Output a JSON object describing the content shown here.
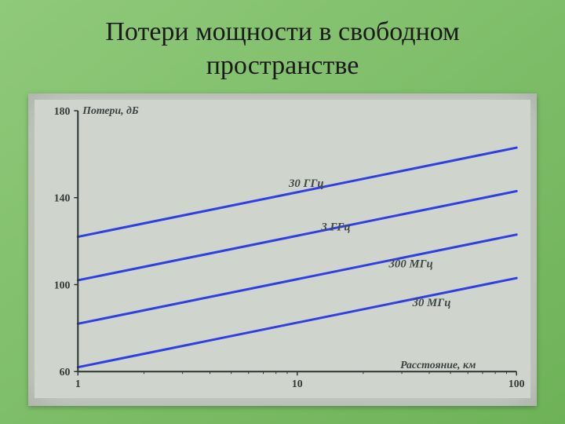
{
  "title_line1": "Потери мощности в свободном",
  "title_line2": "пространстве",
  "chart": {
    "type": "line",
    "background_color": "#cfd4cc",
    "plot_bg": "#cfd4cc",
    "axis_color": "#2b3431",
    "grid_color": "#7d8a82",
    "line_color": "#2f3fe0",
    "line_width": 3,
    "y_label": "Потери, дБ",
    "x_label": "Расстояние, км",
    "y_label_fontsize": 14,
    "x_label_fontsize": 14,
    "tick_fontsize": 14,
    "series_label_fontsize": 15,
    "x_scale": "log",
    "xlim": [
      1,
      100
    ],
    "ylim": [
      60,
      180
    ],
    "x_ticks": [
      {
        "value": 1,
        "label": "1"
      },
      {
        "value": 10,
        "label": "10"
      },
      {
        "value": 100,
        "label": "100"
      }
    ],
    "y_ticks": [
      {
        "value": 60,
        "label": "60"
      },
      {
        "value": 100,
        "label": "100"
      },
      {
        "value": 140,
        "label": "140"
      },
      {
        "value": 180,
        "label": "180"
      }
    ],
    "minor_grid_x": [
      2,
      3,
      4,
      5,
      6,
      7,
      8,
      9,
      20,
      30,
      40,
      50,
      60,
      70,
      80,
      90
    ],
    "series": [
      {
        "name": "30 МГц",
        "label": "30 МГц",
        "y_at_x1": 62,
        "y_at_x100": 103,
        "label_x": 41,
        "label_y": 90
      },
      {
        "name": "300 МГц",
        "label": "300 МГц",
        "y_at_x1": 82,
        "y_at_x100": 123,
        "label_x": 33,
        "label_y": 108
      },
      {
        "name": "3 ГГц",
        "label": "3 ГГц",
        "y_at_x1": 102,
        "y_at_x100": 143,
        "label_x": 15,
        "label_y": 125
      },
      {
        "name": "30 ГГц",
        "label": "30 ГГц",
        "y_at_x1": 122,
        "y_at_x100": 163,
        "label_x": 11,
        "label_y": 145
      }
    ]
  }
}
